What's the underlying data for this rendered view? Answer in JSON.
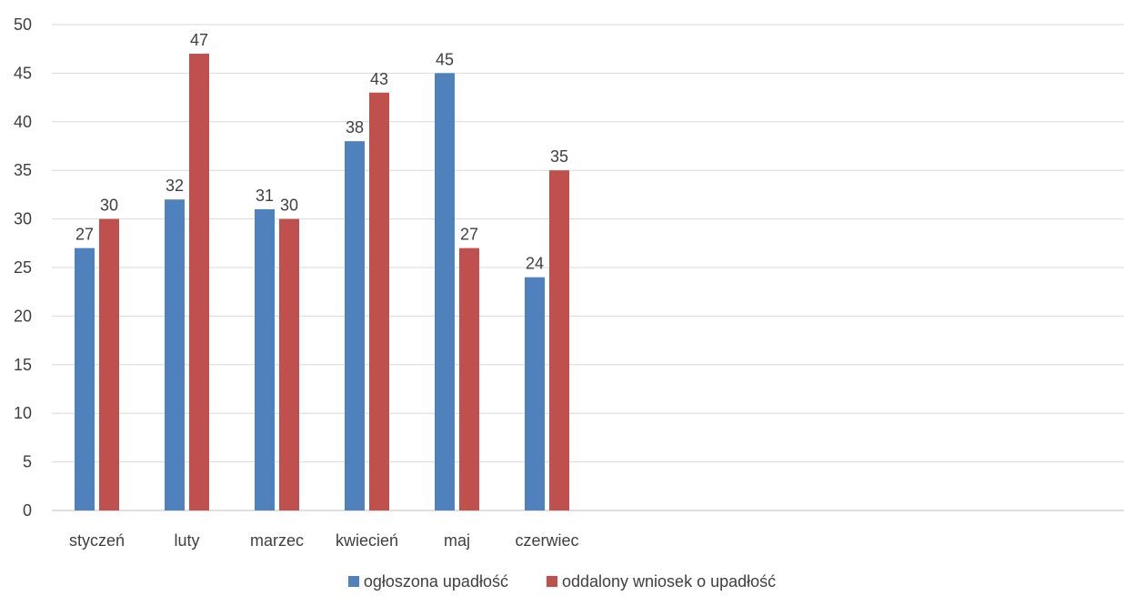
{
  "chart_data": {
    "type": "bar",
    "categories": [
      "styczeń",
      "luty",
      "marzec",
      "kwiecień",
      "maj",
      "czerwiec"
    ],
    "series": [
      {
        "name": "ogłoszona upadłość",
        "values": [
          27,
          32,
          31,
          38,
          45,
          24
        ],
        "color": "#4F81BD"
      },
      {
        "name": "oddalony wniosek o upadłość",
        "values": [
          30,
          47,
          30,
          43,
          27,
          35
        ],
        "color": "#C0504D"
      }
    ],
    "ylim": [
      0,
      50
    ],
    "yticks": [
      0,
      5,
      10,
      15,
      20,
      25,
      30,
      35,
      40,
      45,
      50
    ],
    "grid": true,
    "legend_position": "bottom",
    "data_labels": true
  }
}
